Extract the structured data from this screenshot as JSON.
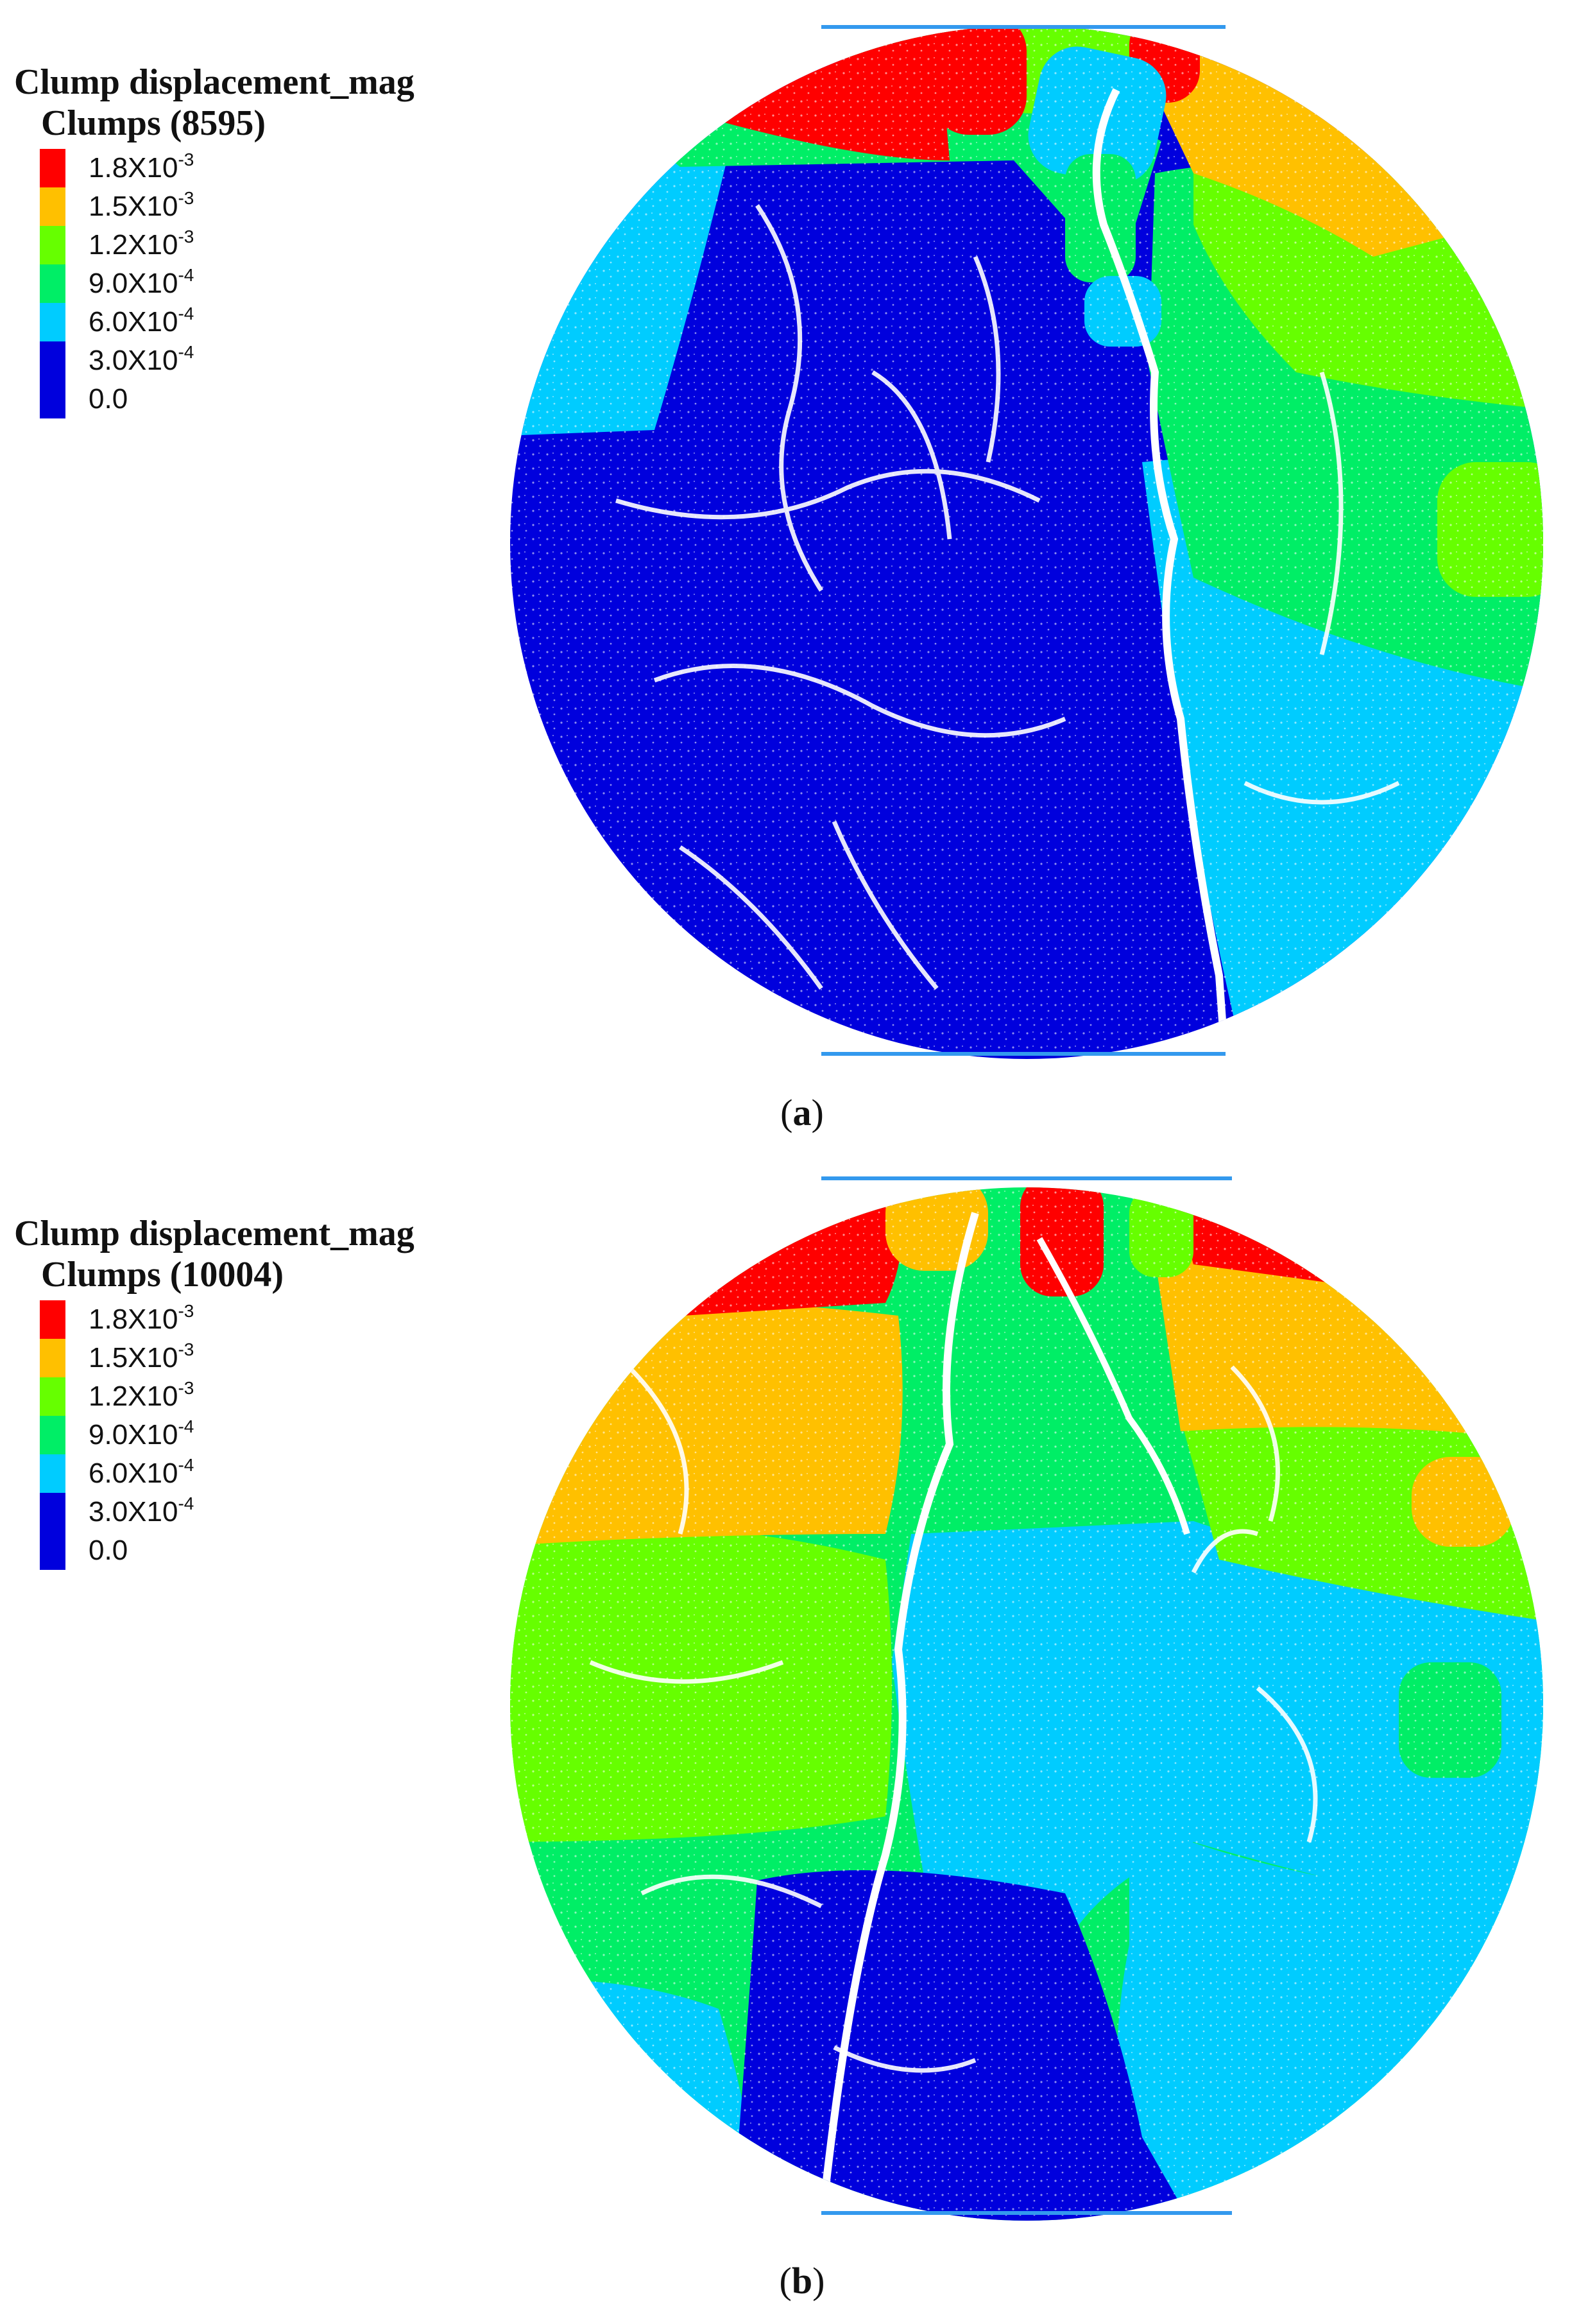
{
  "panels": [
    {
      "id": "a",
      "legend_title": "Clump displacement_mag",
      "legend_subtitle": "Clumps (8595)",
      "legend": [
        {
          "mantissa": "1.8X10",
          "exp": "-3",
          "color": "#ff0000"
        },
        {
          "mantissa": "1.5X10",
          "exp": "-3",
          "color": "#ffc000"
        },
        {
          "mantissa": "1.2X10",
          "exp": "-3",
          "color": "#66ff00"
        },
        {
          "mantissa": "9.0X10",
          "exp": "-4",
          "color": "#00ee66"
        },
        {
          "mantissa": "6.0X10",
          "exp": "-4",
          "color": "#00ccff"
        },
        {
          "mantissa": "3.0X10",
          "exp": "-4",
          "color": "#0000dd"
        },
        {
          "mantissa": "0.0",
          "exp": "",
          "color": "#0000dd"
        }
      ],
      "caption_letter": "a"
    },
    {
      "id": "b",
      "legend_title": "Clump displacement_mag",
      "legend_subtitle": "Clumps (10004)",
      "legend": [
        {
          "mantissa": "1.8X10",
          "exp": "-3",
          "color": "#ff0000"
        },
        {
          "mantissa": "1.5X10",
          "exp": "-3",
          "color": "#ffc000"
        },
        {
          "mantissa": "1.2X10",
          "exp": "-3",
          "color": "#66ff00"
        },
        {
          "mantissa": "9.0X10",
          "exp": "-4",
          "color": "#00ee66"
        },
        {
          "mantissa": "6.0X10",
          "exp": "-4",
          "color": "#00ccff"
        },
        {
          "mantissa": "3.0X10",
          "exp": "-4",
          "color": "#0000dd"
        },
        {
          "mantissa": "0.0",
          "exp": "",
          "color": "#0000dd"
        }
      ],
      "caption_letter": "b"
    }
  ],
  "colors": {
    "red": "#ff0000",
    "orange": "#ffc000",
    "lime": "#66ff00",
    "green": "#00ee66",
    "cyan": "#00ccff",
    "blue": "#0000dd",
    "platen": "#3399ee"
  }
}
